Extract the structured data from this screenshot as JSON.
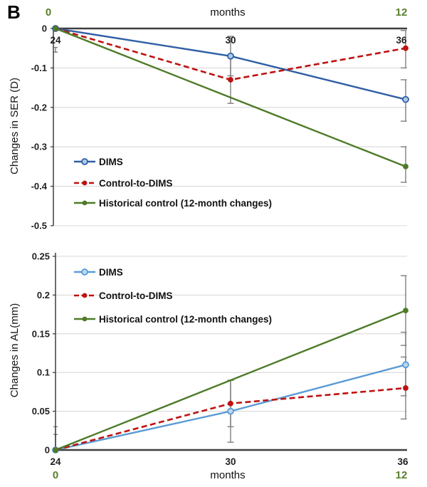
{
  "figure": {
    "panel_label": "B"
  },
  "colors": {
    "dims_top": "#2F5FA5",
    "dims_bottom": "#5B9BD5",
    "control_to_dims": "#BE1210",
    "historical_control": "#4E7B28",
    "gridline": "#D9D9D9",
    "axis": "#3F3F3F",
    "error_bar": "#7F7F7F",
    "secondary_axis_green": "#587F2A"
  },
  "chart_data": [
    {
      "type": "line",
      "panel": "SER changes (24-36 months)",
      "xlabel": "months",
      "ylabel": "Changes in SER (D)",
      "x": [
        24,
        30,
        36
      ],
      "x_tick_labels": [
        "24",
        "30",
        "36"
      ],
      "x_secondary_labels": [
        "0",
        "12"
      ],
      "ylim": [
        -0.5,
        0
      ],
      "y_ticks": [
        0,
        -0.1,
        -0.2,
        -0.3,
        -0.4,
        -0.5
      ],
      "y_tick_labels": [
        "0",
        "-0.1",
        "-0.2",
        "-0.3",
        "-0.4",
        "-0.5"
      ],
      "grid": true,
      "legend_position": "lower-left",
      "series": [
        {
          "name": "DIMS",
          "values": [
            0,
            -0.07,
            -0.18
          ],
          "style": "solid",
          "marker": "open-circle"
        },
        {
          "name": "Control-to-DIMS",
          "values": [
            0,
            -0.13,
            -0.05
          ],
          "style": "dashed",
          "marker": "filled-circle"
        },
        {
          "name": "Historical control (12-month changes)",
          "x": [
            24,
            36
          ],
          "values": [
            0,
            -0.35
          ],
          "style": "solid",
          "marker": "filled-circle"
        }
      ],
      "error_bars": [
        {
          "x": 24,
          "low": -0.06,
          "high": -0.048,
          "cap": "small"
        },
        {
          "x": 30,
          "low": -0.12,
          "high": -0.02,
          "cap": "full"
        },
        {
          "x": 30,
          "low": -0.19,
          "high": -0.07,
          "cap": "full"
        },
        {
          "x": 36,
          "low": -0.1,
          "high": -0.005,
          "cap": "left"
        },
        {
          "x": 36,
          "low": -0.235,
          "high": -0.13,
          "cap": "left"
        },
        {
          "x": 36,
          "low": -0.39,
          "high": -0.3,
          "cap": "left"
        }
      ]
    },
    {
      "type": "line",
      "panel": "AL changes (24-36 months)",
      "xlabel": "months",
      "ylabel": "Changes in AL(mm)",
      "x": [
        24,
        30,
        36
      ],
      "x_tick_labels": [
        "24",
        "30",
        "36"
      ],
      "x_secondary_labels": [
        "0",
        "12"
      ],
      "ylim": [
        0,
        0.25
      ],
      "y_ticks": [
        0,
        0.05,
        0.1,
        0.15,
        0.2,
        0.25
      ],
      "y_tick_labels": [
        "0",
        "0.05",
        "0.1",
        "0.15",
        "0.2",
        "0.25"
      ],
      "grid": true,
      "legend_position": "upper-left",
      "series": [
        {
          "name": "DIMS",
          "values": [
            0,
            0.05,
            0.11
          ],
          "style": "solid",
          "marker": "open-circle"
        },
        {
          "name": "Control-to-DIMS",
          "values": [
            0,
            0.06,
            0.08
          ],
          "style": "dashed",
          "marker": "filled-circle"
        },
        {
          "name": "Historical control (12-month changes)",
          "x": [
            24,
            36
          ],
          "values": [
            0,
            0.18
          ],
          "style": "solid",
          "marker": "filled-circle"
        }
      ],
      "error_bars": [
        {
          "x": 24,
          "low": 0,
          "high": 0.03,
          "cap": "small"
        },
        {
          "x": 24,
          "low": 0,
          "high": 0.02,
          "cap": "small"
        },
        {
          "x": 30,
          "low": 0.01,
          "high": 0.09,
          "cap": "full"
        },
        {
          "x": 30,
          "low": 0.03,
          "high": 0.09,
          "cap": "full"
        },
        {
          "x": 36,
          "low": 0.135,
          "high": 0.225,
          "cap": "left"
        },
        {
          "x": 36,
          "low": 0.07,
          "high": 0.152,
          "cap": "left"
        },
        {
          "x": 36,
          "low": 0.04,
          "high": 0.12,
          "cap": "left"
        }
      ]
    }
  ]
}
